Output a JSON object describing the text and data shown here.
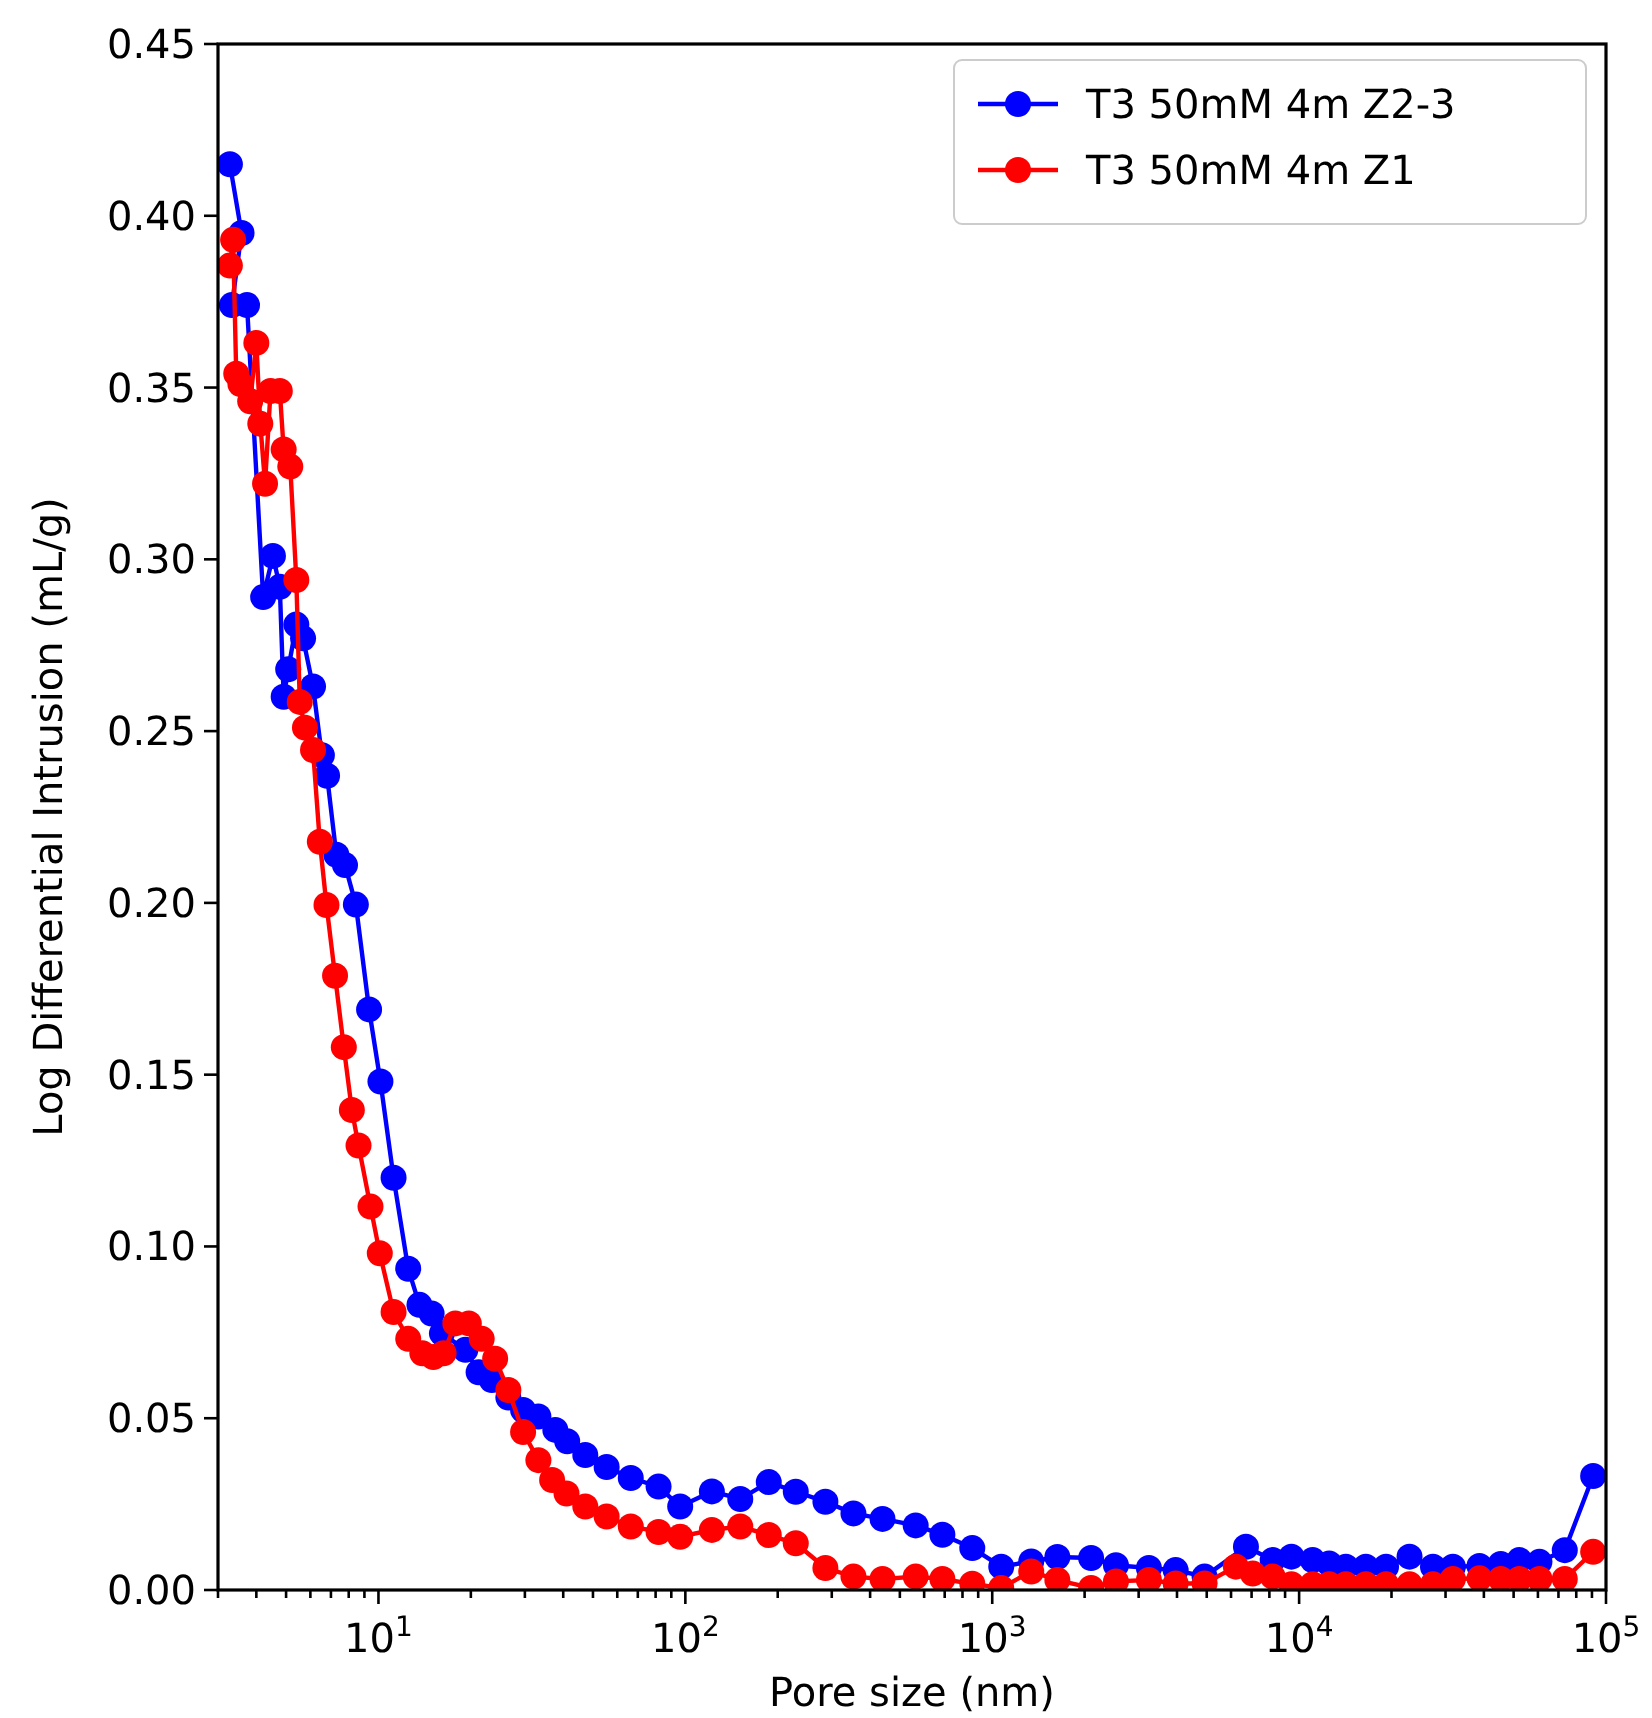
{
  "chart_data": {
    "type": "line",
    "xlabel": "Pore size (nm)",
    "ylabel": "Log Differential Intrusion (mL/g)",
    "log": "x",
    "marker": "circle",
    "line_style": "solid",
    "grid": false,
    "legend": "top right",
    "xlim": [
      3,
      100000
    ],
    "xticks": [
      {
        "value": 10,
        "label": "10$^{1}$"
      },
      {
        "value": 100,
        "label": "10$^{2}$"
      },
      {
        "value": 1000,
        "label": "10$^{3}$"
      },
      {
        "value": 10000,
        "label": "10$^{4}$"
      },
      {
        "value": 100000,
        "label": "10$^{5}$"
      },
      {
        "value": 3,
        "label": null
      },
      {
        "value": 4,
        "label": null
      },
      {
        "value": 5,
        "label": null
      },
      {
        "value": 6,
        "label": null
      },
      {
        "value": 7,
        "label": null
      },
      {
        "value": 8,
        "label": null
      },
      {
        "value": 9,
        "label": null
      },
      {
        "value": 20,
        "label": null
      },
      {
        "value": 30,
        "label": null
      },
      {
        "value": 40,
        "label": null
      },
      {
        "value": 50,
        "label": null
      },
      {
        "value": 60,
        "label": null
      },
      {
        "value": 70,
        "label": null
      },
      {
        "value": 80,
        "label": null
      },
      {
        "value": 90,
        "label": null
      },
      {
        "value": 200,
        "label": null
      },
      {
        "value": 300,
        "label": null
      },
      {
        "value": 400,
        "label": null
      },
      {
        "value": 500,
        "label": null
      },
      {
        "value": 600,
        "label": null
      },
      {
        "value": 700,
        "label": null
      },
      {
        "value": 800,
        "label": null
      },
      {
        "value": 900,
        "label": null
      },
      {
        "value": 2000,
        "label": null
      },
      {
        "value": 3000,
        "label": null
      },
      {
        "value": 4000,
        "label": null
      },
      {
        "value": 5000,
        "label": null
      },
      {
        "value": 6000,
        "label": null
      },
      {
        "value": 7000,
        "label": null
      },
      {
        "value": 8000,
        "label": null
      },
      {
        "value": 9000,
        "label": null
      },
      {
        "value": 20000,
        "label": null
      },
      {
        "value": 30000,
        "label": null
      },
      {
        "value": 40000,
        "label": null
      },
      {
        "value": 50000,
        "label": null
      },
      {
        "value": 60000,
        "label": null
      },
      {
        "value": 70000,
        "label": null
      },
      {
        "value": 80000,
        "label": null
      },
      {
        "value": 90000,
        "label": null
      }
    ],
    "ylim": [
      0,
      0.45
    ],
    "yticks": [
      {
        "value": 0,
        "label": "0.00"
      },
      {
        "value": 0.05,
        "label": "0.05"
      },
      {
        "value": 0.1,
        "label": "0.10"
      },
      {
        "value": 0.15,
        "label": "0.15"
      },
      {
        "value": 0.2,
        "label": "0.20"
      },
      {
        "value": 0.25,
        "label": "0.25"
      },
      {
        "value": 0.3,
        "label": "0.30"
      },
      {
        "value": 0.35,
        "label": "0.35"
      },
      {
        "value": 0.4,
        "label": "0.40"
      },
      {
        "value": 0.45,
        "label": "0.45"
      }
    ],
    "series": [
      {
        "name": "T3 50mM 4m Z2-3",
        "color": "#0000ff",
        "x": [
          3.28,
          3.58,
          3.33,
          3.73,
          3.86,
          4.21,
          4.53,
          4.77,
          4.91,
          5.08,
          5.4,
          5.68,
          6.12,
          6.54,
          6.8,
          7.29,
          7.78,
          8.44,
          9.32,
          10.15,
          11.2,
          12.5,
          13.6,
          14.9,
          16.1,
          19.2,
          21.2,
          23.4,
          26.5,
          29.6,
          33.2,
          37.7,
          41.2,
          47.2,
          55.4,
          66.4,
          81.8,
          96.2,
          122,
          151,
          187,
          229,
          286,
          353,
          439,
          563,
          688,
          861,
          1070,
          1340,
          1630,
          2100,
          2530,
          3240,
          3960,
          4920,
          6710,
          8200,
          9440,
          11070,
          12530,
          14200,
          16500,
          19200,
          22900,
          27300,
          31700,
          38700,
          45400,
          52200,
          60700,
          73400,
          90800
        ],
        "values": [
          0.415,
          0.395,
          0.374,
          0.374,
          null,
          0.289,
          0.301,
          0.292,
          0.26,
          0.268,
          0.281,
          0.277,
          0.263,
          0.243,
          0.237,
          0.214,
          0.211,
          0.1995,
          0.169,
          0.148,
          0.12,
          0.0935,
          0.083,
          0.0805,
          0.0747,
          0.0699,
          0.0634,
          0.0611,
          0.056,
          0.0524,
          0.0505,
          0.0466,
          0.0433,
          0.0393,
          0.0358,
          0.0326,
          0.0301,
          0.0243,
          0.0287,
          0.0265,
          0.0314,
          0.0286,
          0.0257,
          0.0223,
          0.0207,
          0.0188,
          0.0161,
          0.0122,
          0.0068,
          0.0083,
          0.0096,
          0.0093,
          0.0072,
          0.0064,
          0.0058,
          0.0039,
          0.0126,
          0.0087,
          0.0097,
          0.0087,
          0.0077,
          0.0068,
          0.0068,
          0.0068,
          0.0097,
          0.0068,
          0.0068,
          0.007,
          0.0076,
          0.0087,
          0.0082,
          0.0116,
          0.0332
        ]
      },
      {
        "name": "T3 50mM 4m Z1",
        "color": "#ff0000",
        "x": [
          3.28,
          3.36,
          3.44,
          3.55,
          3.82,
          4.0,
          4.12,
          4.27,
          4.45,
          4.77,
          4.91,
          5.16,
          5.4,
          5.54,
          5.76,
          6.12,
          6.44,
          6.77,
          7.22,
          7.71,
          8.19,
          8.61,
          9.42,
          10.1,
          11.2,
          12.5,
          13.9,
          15.1,
          16.3,
          17.8,
          19.7,
          21.7,
          24.0,
          26.5,
          29.6,
          33.2,
          36.8,
          41.0,
          47.2,
          55.4,
          66.4,
          81.8,
          96.2,
          122,
          151,
          187,
          229,
          286,
          353,
          439,
          563,
          688,
          861,
          1070,
          1340,
          1630,
          2100,
          2530,
          3240,
          3960,
          4920,
          6220,
          7060,
          8200,
          9440,
          11070,
          12530,
          14200,
          16500,
          19200,
          22900,
          27300,
          31700,
          38700,
          45400,
          52200,
          60700,
          73400,
          90800
        ],
        "values": [
          0.3855,
          0.393,
          0.354,
          0.351,
          0.346,
          0.363,
          0.3395,
          0.322,
          0.349,
          0.349,
          0.332,
          0.327,
          0.294,
          0.2585,
          0.251,
          0.2445,
          0.2178,
          0.1994,
          0.1788,
          0.158,
          0.1397,
          0.1294,
          0.1116,
          0.098,
          0.0809,
          0.0731,
          0.0689,
          0.0678,
          0.0689,
          0.0776,
          0.0776,
          0.0731,
          0.0673,
          0.0582,
          0.046,
          0.0378,
          0.032,
          0.0281,
          0.0243,
          0.0214,
          0.0185,
          0.0169,
          0.0155,
          0.0175,
          0.0185,
          0.016,
          0.0136,
          0.0064,
          0.0039,
          0.0032,
          0.0039,
          0.0032,
          0.0018,
          0.0006,
          0.0054,
          0.0029,
          0.0006,
          0.0025,
          0.0029,
          0.0019,
          0.0019,
          0.0068,
          0.0048,
          0.0039,
          0.0017,
          0.0017,
          0.0017,
          0.0017,
          0.0017,
          0.0017,
          0.0017,
          0.0017,
          0.0032,
          0.0034,
          0.0032,
          0.0032,
          0.0032,
          0.0032,
          0.0111
        ]
      }
    ]
  }
}
